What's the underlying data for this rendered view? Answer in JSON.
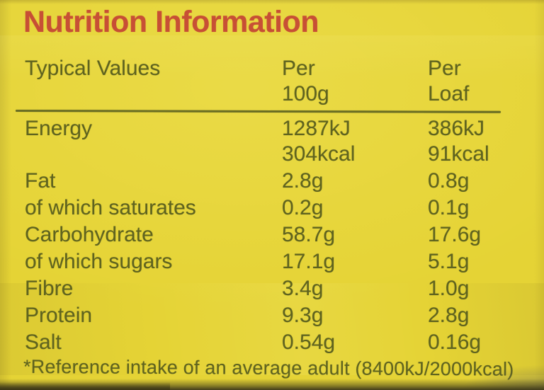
{
  "title": "Nutrition Information",
  "table": {
    "header": {
      "col1": "Typical Values",
      "col2": [
        "Per",
        "100g"
      ],
      "col3": [
        "Per",
        "Loaf"
      ]
    },
    "rows": [
      {
        "label": "Energy",
        "per_100g": "1287kJ",
        "per_loaf": "386kJ"
      },
      {
        "label": "",
        "per_100g": "304kcal",
        "per_loaf": "91kcal"
      },
      {
        "label": "Fat",
        "per_100g": "2.8g",
        "per_loaf": "0.8g"
      },
      {
        "label": "of which saturates",
        "per_100g": "0.2g",
        "per_loaf": "0.1g"
      },
      {
        "label": "Carbohydrate",
        "per_100g": "58.7g",
        "per_loaf": "17.6g"
      },
      {
        "label": "of which sugars",
        "per_100g": "17.1g",
        "per_loaf": "5.1g"
      },
      {
        "label": "Fibre",
        "per_100g": "3.4g",
        "per_loaf": "1.0g"
      },
      {
        "label": "Protein",
        "per_100g": "9.3g",
        "per_loaf": "2.8g"
      },
      {
        "label": "Salt",
        "per_100g": "0.54g",
        "per_loaf": "0.16g"
      }
    ]
  },
  "footnote": "*Reference intake of an average adult (8400kJ/2000kcal)",
  "colors": {
    "background": "#e5d335",
    "text": "#5f631f",
    "heading": "#c74f35",
    "divider": "#6b6e24"
  }
}
